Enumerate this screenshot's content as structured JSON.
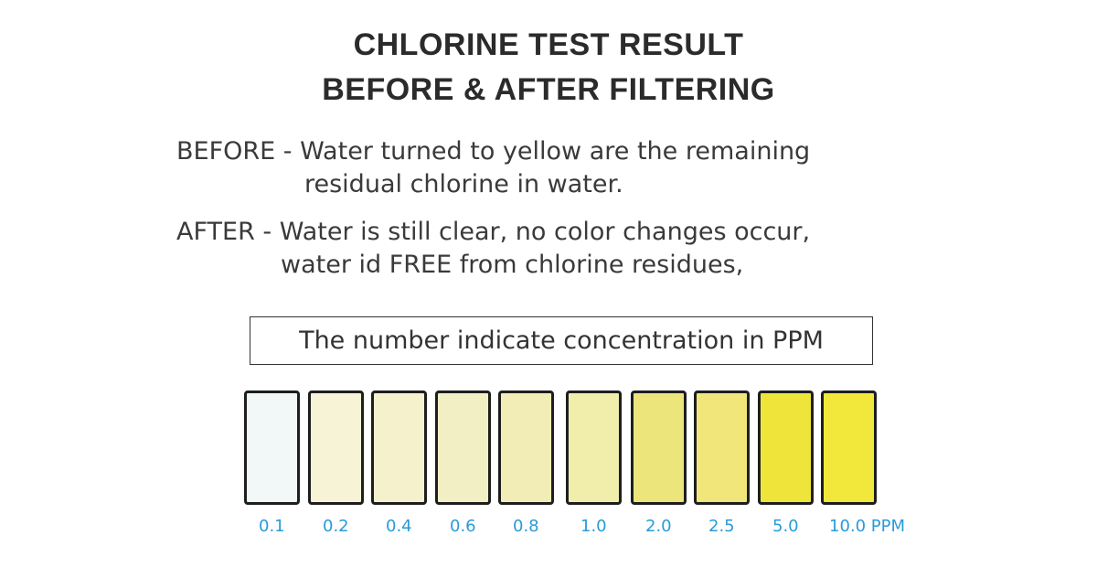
{
  "title": {
    "line1": "CHLORINE TEST RESULT",
    "line2": "BEFORE & AFTER FILTERING"
  },
  "description": {
    "before_line1": "BEFORE - Water turned to yellow are the remaining",
    "before_line2": "residual chlorine in water.",
    "after_line1": "AFTER - Water is still clear, no color changes occur,",
    "after_line2": "water id FREE from chlorine residues,"
  },
  "note": "The number indicate concentration in PPM",
  "scale": [
    {
      "label": "0.1",
      "color": "#f2f7f7"
    },
    {
      "label": "0.2",
      "color": "#f6f3d6"
    },
    {
      "label": "0.4",
      "color": "#f5f1cd"
    },
    {
      "label": "0.6",
      "color": "#f3efc4"
    },
    {
      "label": "0.8",
      "color": "#f2edb7"
    },
    {
      "label": "1.0",
      "color": "#f1eeac"
    },
    {
      "label": "2.0",
      "color": "#ece57b"
    },
    {
      "label": "2.5",
      "color": "#f0e679"
    },
    {
      "label": "5.0",
      "color": "#efe53a"
    },
    {
      "label": "10.0 PPM",
      "color": "#f2e83c"
    }
  ]
}
